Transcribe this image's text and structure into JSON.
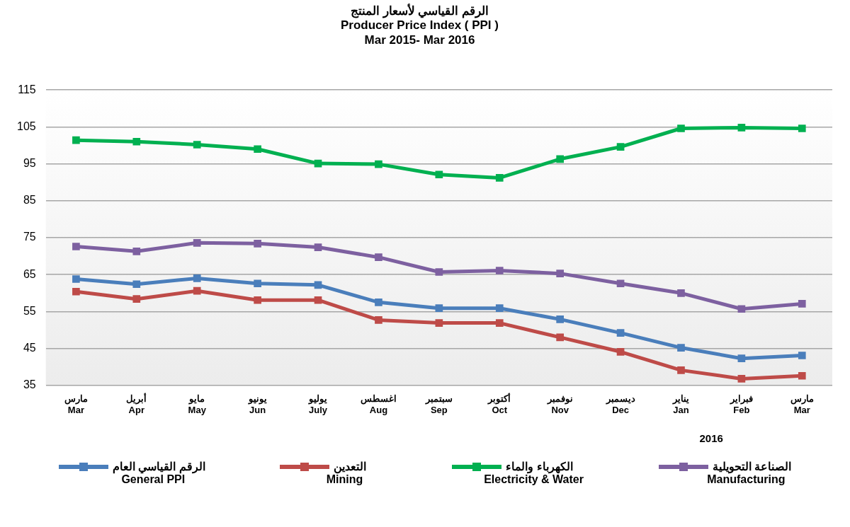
{
  "chart_data": {
    "type": "line",
    "title": "الرقم القياسي لأسعار المنتج\nProducer Price Index ( PPI )",
    "subtitle": "Mar 2015- Mar 2016",
    "categories": [
      "مارس\nMar",
      "أبريل\nApr",
      "مايو\nMay",
      "يونيو\nJun",
      "يوليو\nJuly",
      "اغسطس\nAug",
      "سبتمبر\nSep",
      "أكتوبر\nOct",
      "نوفمبر\nNov",
      "ديسمبر\nDec",
      "يناير\nJan",
      "فبراير\nFeb",
      "مارس\nMar"
    ],
    "series": [
      {
        "name": "الرقم القياسي العام\nGeneral  PPI",
        "color": "#4a7ebb",
        "values": [
          63.8,
          62.4,
          64.0,
          62.6,
          62.2,
          57.5,
          55.9,
          55.9,
          52.9,
          49.2,
          45.2,
          42.3,
          43.1
        ]
      },
      {
        "name": "التعدين\nMining",
        "color": "#be4b48",
        "values": [
          60.4,
          58.4,
          60.6,
          58.1,
          58.1,
          52.7,
          51.9,
          51.9,
          48.0,
          44.1,
          39.1,
          36.8,
          37.6
        ]
      },
      {
        "name": "الكهرباء والماء\nElectricity & Water",
        "color": "#00b050",
        "values": [
          101.4,
          101.0,
          100.2,
          99.0,
          95.1,
          94.9,
          92.1,
          91.2,
          96.3,
          99.6,
          104.6,
          104.8,
          104.6
        ]
      },
      {
        "name": "الصناعة التحويلية\nManufacturing",
        "color": "#7d60a0",
        "values": [
          72.6,
          71.3,
          73.6,
          73.4,
          72.4,
          69.7,
          65.7,
          66.1,
          65.3,
          62.6,
          60.0,
          55.7,
          57.1
        ]
      }
    ],
    "ylim": [
      35,
      115
    ],
    "yticks": [
      35,
      45,
      55,
      65,
      75,
      85,
      95,
      105,
      115
    ],
    "grid": "y",
    "legend": "bottom",
    "marker": "square",
    "line_style": "solid",
    "annotations": [
      "2016"
    ]
  }
}
